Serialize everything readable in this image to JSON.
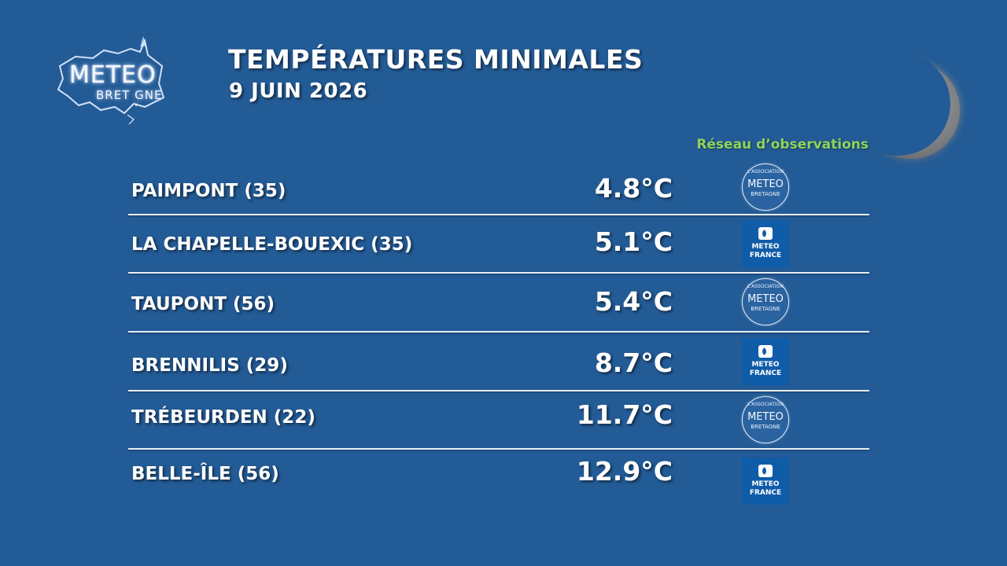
{
  "logo": {
    "line1": "METEO",
    "line2": "BRET GNE"
  },
  "header": {
    "title": "TEMPÉRATURES MINIMALES",
    "date": "9 JUIN 2026"
  },
  "network_label": "Réseau d’observations",
  "sources": {
    "meteo_bretagne": {
      "top": "L'ASSOCIATION",
      "mid": "METEO",
      "bottom": "BRETAGNE"
    },
    "meteo_france": {
      "line1": "METEO",
      "line2": "FRANCE"
    }
  },
  "rows": [
    {
      "city": "PAIMPONT (35)",
      "temp": "4.8°C",
      "source": "meteo_bretagne"
    },
    {
      "city": "LA CHAPELLE-BOUEXIC (35)",
      "temp": "5.1°C",
      "source": "meteo_france"
    },
    {
      "city": "TAUPONT (56)",
      "temp": "5.4°C",
      "source": "meteo_bretagne"
    },
    {
      "city": "BRENNILIS (29)",
      "temp": "8.7°C",
      "source": "meteo_france"
    },
    {
      "city": "TRÉBEURDEN (22)",
      "temp": "11.7°C",
      "source": "meteo_bretagne"
    },
    {
      "city": "BELLE-ÎLE (56)",
      "temp": "12.9°C",
      "source": "meteo_france"
    }
  ],
  "colors": {
    "background": "#235b96",
    "accent": "#8fd35a",
    "text": "#ffffff"
  }
}
